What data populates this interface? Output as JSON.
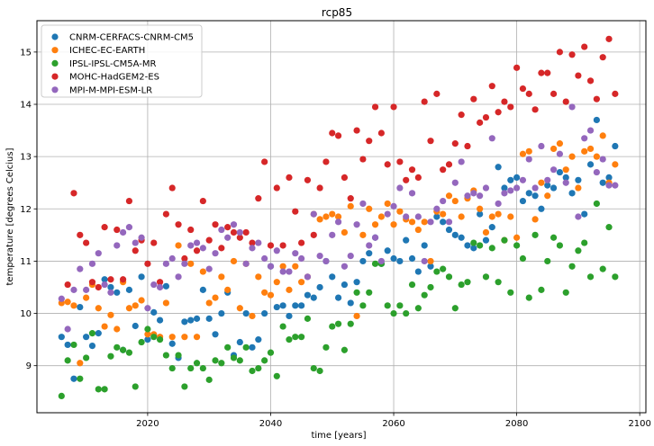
{
  "chart_data": {
    "type": "scatter",
    "title": "rcp85",
    "xlabel": "time [years]",
    "ylabel": "temperature [degrees Celcius]",
    "xlim": [
      2002,
      2101
    ],
    "ylim": [
      8.1,
      15.6
    ],
    "xticks": [
      2020,
      2040,
      2060,
      2080,
      2100
    ],
    "yticks": [
      9,
      10,
      11,
      12,
      13,
      14,
      15
    ],
    "grid": true,
    "legend_loc": "upper left",
    "series": [
      {
        "name": "CNRM-CERFACS-CNRM-CM5",
        "color": "#1f77b4",
        "x": [
          2006,
          2007,
          2008,
          2009,
          2010,
          2011,
          2012,
          2013,
          2014,
          2015,
          2016,
          2017,
          2018,
          2019,
          2020,
          2021,
          2022,
          2023,
          2024,
          2025,
          2026,
          2027,
          2028,
          2029,
          2030,
          2031,
          2032,
          2033,
          2034,
          2035,
          2036,
          2037,
          2038,
          2039,
          2040,
          2041,
          2042,
          2043,
          2044,
          2045,
          2046,
          2047,
          2048,
          2049,
          2050,
          2051,
          2052,
          2053,
          2054,
          2055,
          2056,
          2057,
          2058,
          2059,
          2060,
          2061,
          2062,
          2063,
          2064,
          2065,
          2066,
          2067,
          2068,
          2069,
          2070,
          2071,
          2072,
          2073,
          2074,
          2075,
          2076,
          2077,
          2078,
          2079,
          2080,
          2081,
          2082,
          2083,
          2084,
          2085,
          2086,
          2087,
          2088,
          2089,
          2090,
          2091,
          2092,
          2093,
          2094,
          2095,
          2096
        ],
        "y": [
          9.55,
          9.4,
          8.75,
          10.12,
          9.55,
          9.38,
          9.62,
          10.65,
          10.5,
          10.4,
          9.3,
          10.45,
          9.76,
          10.7,
          9.5,
          10.02,
          9.87,
          10.52,
          9.42,
          9.15,
          9.84,
          9.87,
          9.9,
          10.45,
          9.9,
          9.6,
          10.0,
          10.4,
          9.2,
          9.45,
          10.0,
          9.35,
          9.5,
          10.0,
          10.9,
          10.12,
          10.15,
          9.95,
          10.15,
          10.15,
          10.35,
          10.3,
          10.5,
          11.0,
          10.7,
          10.3,
          10.55,
          10.2,
          10.6,
          11.0,
          11.15,
          11.45,
          10.95,
          11.2,
          11.05,
          11.0,
          11.4,
          11.05,
          10.8,
          11.3,
          10.9,
          11.85,
          11.75,
          11.6,
          11.5,
          11.45,
          11.3,
          11.25,
          11.9,
          11.4,
          11.65,
          12.8,
          12.4,
          12.55,
          12.6,
          12.15,
          12.3,
          12.25,
          12.0,
          12.45,
          12.4,
          12.7,
          12.6,
          12.3,
          12.55,
          11.9,
          12.85,
          13.7,
          12.5,
          12.6,
          13.2
        ]
      },
      {
        "name": "ICHEC-EC-EARTH",
        "color": "#ff7f0e",
        "x": [
          2006,
          2007,
          2008,
          2009,
          2010,
          2011,
          2012,
          2013,
          2014,
          2015,
          2016,
          2017,
          2018,
          2019,
          2020,
          2021,
          2022,
          2023,
          2024,
          2025,
          2026,
          2027,
          2028,
          2029,
          2030,
          2031,
          2032,
          2033,
          2034,
          2035,
          2036,
          2037,
          2038,
          2039,
          2040,
          2041,
          2042,
          2043,
          2044,
          2045,
          2046,
          2047,
          2048,
          2049,
          2050,
          2051,
          2052,
          2053,
          2054,
          2055,
          2056,
          2057,
          2058,
          2059,
          2060,
          2061,
          2062,
          2063,
          2064,
          2065,
          2066,
          2067,
          2068,
          2069,
          2070,
          2071,
          2072,
          2073,
          2074,
          2075,
          2076,
          2077,
          2078,
          2079,
          2080,
          2081,
          2082,
          2083,
          2084,
          2085,
          2086,
          2087,
          2088,
          2089,
          2090,
          2091,
          2092,
          2093,
          2094,
          2095,
          2096
        ],
        "y": [
          10.2,
          10.22,
          10.15,
          9.05,
          10.3,
          10.55,
          10.1,
          9.75,
          9.97,
          9.7,
          10.6,
          10.1,
          10.15,
          10.25,
          9.6,
          9.6,
          9.55,
          10.2,
          9.55,
          11.3,
          9.55,
          10.95,
          9.55,
          10.8,
          10.2,
          10.3,
          10.7,
          10.45,
          11.0,
          10.1,
          10.95,
          9.95,
          10.7,
          10.4,
          10.35,
          10.6,
          10.9,
          10.45,
          10.9,
          10.6,
          10.7,
          11.9,
          11.8,
          11.85,
          11.9,
          11.85,
          11.55,
          12.05,
          9.95,
          11.5,
          12.0,
          11.7,
          11.85,
          12.1,
          11.7,
          11.95,
          11.8,
          11.75,
          11.6,
          11.75,
          11.0,
          11.95,
          11.9,
          12.25,
          12.15,
          11.85,
          12.2,
          12.35,
          12.0,
          11.55,
          11.85,
          11.9,
          11.4,
          11.85,
          11.45,
          13.05,
          13.1,
          11.8,
          12.5,
          12.25,
          13.15,
          13.25,
          12.75,
          13.0,
          12.4,
          13.1,
          13.15,
          13.0,
          13.4,
          12.5,
          12.85
        ]
      },
      {
        "name": "IPSL-IPSL-CM5A-MR",
        "color": "#2ca02c",
        "x": [
          2006,
          2007,
          2008,
          2009,
          2010,
          2011,
          2012,
          2013,
          2014,
          2015,
          2016,
          2017,
          2018,
          2019,
          2020,
          2021,
          2022,
          2023,
          2024,
          2025,
          2026,
          2027,
          2028,
          2029,
          2030,
          2031,
          2032,
          2033,
          2034,
          2035,
          2036,
          2037,
          2038,
          2039,
          2040,
          2041,
          2042,
          2043,
          2044,
          2045,
          2046,
          2047,
          2048,
          2049,
          2050,
          2051,
          2052,
          2053,
          2054,
          2055,
          2056,
          2057,
          2058,
          2059,
          2060,
          2061,
          2062,
          2063,
          2064,
          2065,
          2066,
          2067,
          2068,
          2069,
          2070,
          2071,
          2072,
          2073,
          2074,
          2075,
          2076,
          2077,
          2078,
          2079,
          2080,
          2081,
          2082,
          2083,
          2084,
          2085,
          2086,
          2087,
          2088,
          2089,
          2090,
          2091,
          2092,
          2093,
          2094,
          2095,
          2096
        ],
        "y": [
          8.42,
          9.1,
          9.4,
          8.75,
          9.15,
          9.62,
          8.55,
          8.55,
          9.18,
          9.35,
          9.3,
          9.25,
          8.6,
          9.45,
          9.7,
          9.55,
          9.5,
          9.2,
          8.95,
          9.2,
          8.6,
          8.95,
          9.05,
          8.95,
          8.73,
          9.1,
          9.05,
          9.35,
          9.15,
          9.1,
          9.35,
          8.9,
          8.95,
          9.1,
          9.25,
          8.8,
          9.75,
          9.5,
          9.55,
          9.55,
          9.9,
          8.95,
          8.9,
          9.35,
          9.75,
          9.8,
          9.3,
          9.8,
          10.4,
          10.15,
          10.4,
          10.95,
          10.95,
          10.15,
          10.0,
          10.15,
          10.0,
          10.55,
          10.1,
          10.35,
          10.5,
          10.8,
          10.85,
          10.7,
          10.1,
          10.55,
          10.6,
          11.35,
          11.3,
          10.7,
          11.25,
          10.6,
          11.4,
          10.4,
          11.3,
          11.05,
          10.3,
          11.5,
          10.45,
          11.0,
          11.45,
          11.3,
          10.4,
          10.9,
          11.2,
          11.35,
          10.7,
          12.1,
          10.85,
          11.65,
          10.7
        ]
      },
      {
        "name": "MOHC-HadGEM2-ES",
        "color": "#d62728",
        "x": [
          2007,
          2008,
          2009,
          2010,
          2011,
          2012,
          2013,
          2014,
          2015,
          2016,
          2017,
          2018,
          2019,
          2020,
          2021,
          2022,
          2023,
          2024,
          2025,
          2026,
          2027,
          2028,
          2029,
          2030,
          2031,
          2032,
          2033,
          2034,
          2035,
          2036,
          2037,
          2038,
          2039,
          2040,
          2041,
          2042,
          2043,
          2044,
          2045,
          2046,
          2047,
          2048,
          2049,
          2050,
          2051,
          2052,
          2053,
          2054,
          2055,
          2056,
          2057,
          2058,
          2059,
          2060,
          2061,
          2062,
          2063,
          2064,
          2065,
          2066,
          2067,
          2068,
          2069,
          2070,
          2071,
          2072,
          2073,
          2074,
          2075,
          2076,
          2077,
          2078,
          2079,
          2080,
          2081,
          2082,
          2083,
          2084,
          2085,
          2086,
          2087,
          2088,
          2089,
          2090,
          2091,
          2092,
          2093,
          2094,
          2095,
          2096
        ],
        "y": [
          10.55,
          12.3,
          11.5,
          11.35,
          10.6,
          10.5,
          11.65,
          10.65,
          11.6,
          10.65,
          12.15,
          11.2,
          11.4,
          10.95,
          11.35,
          10.6,
          11.9,
          12.4,
          11.7,
          11.05,
          11.6,
          11.2,
          12.15,
          11.4,
          11.7,
          11.25,
          11.65,
          11.55,
          11.45,
          11.55,
          11.35,
          12.2,
          12.9,
          11.3,
          12.4,
          11.3,
          12.6,
          11.95,
          11.35,
          12.55,
          11.5,
          12.4,
          12.9,
          13.45,
          13.4,
          12.6,
          12.2,
          13.5,
          12.95,
          13.3,
          13.95,
          13.45,
          12.85,
          13.95,
          12.9,
          12.55,
          12.75,
          12.6,
          14.05,
          13.3,
          14.2,
          12.75,
          12.85,
          13.25,
          13.8,
          13.2,
          14.1,
          13.65,
          13.75,
          14.35,
          13.85,
          14.05,
          13.95,
          14.7,
          14.3,
          14.2,
          13.9,
          14.6,
          14.6,
          14.2,
          15.0,
          14.05,
          14.95,
          14.55,
          15.1,
          14.45,
          14.1,
          14.9,
          15.25,
          14.2
        ]
      },
      {
        "name": "MPI-M-MPI-ESM-LR",
        "color": "#9467bd",
        "x": [
          2006,
          2007,
          2008,
          2009,
          2010,
          2011,
          2012,
          2013,
          2014,
          2015,
          2016,
          2017,
          2018,
          2019,
          2020,
          2021,
          2022,
          2023,
          2024,
          2025,
          2026,
          2027,
          2028,
          2029,
          2030,
          2031,
          2032,
          2033,
          2034,
          2035,
          2036,
          2037,
          2038,
          2039,
          2040,
          2041,
          2042,
          2043,
          2044,
          2045,
          2046,
          2047,
          2048,
          2049,
          2050,
          2051,
          2052,
          2053,
          2054,
          2055,
          2056,
          2057,
          2058,
          2059,
          2060,
          2061,
          2062,
          2063,
          2064,
          2065,
          2066,
          2067,
          2068,
          2069,
          2070,
          2071,
          2072,
          2073,
          2074,
          2075,
          2076,
          2077,
          2078,
          2079,
          2080,
          2081,
          2082,
          2083,
          2084,
          2085,
          2086,
          2087,
          2088,
          2089,
          2090,
          2091,
          2092,
          2093,
          2094,
          2095,
          2096
        ],
        "y": [
          10.28,
          9.7,
          10.45,
          10.85,
          10.45,
          10.95,
          11.15,
          10.55,
          10.4,
          11.3,
          11.55,
          11.65,
          11.35,
          11.45,
          10.1,
          10.55,
          10.5,
          10.95,
          11.05,
          10.7,
          10.95,
          11.3,
          11.35,
          11.25,
          10.85,
          11.15,
          11.6,
          11.45,
          11.7,
          11.55,
          10.95,
          11.25,
          11.35,
          11.05,
          10.9,
          11.2,
          10.8,
          10.8,
          11.15,
          11.05,
          10.7,
          11.9,
          11.1,
          11.0,
          11.5,
          11.75,
          10.9,
          11.1,
          11.7,
          12.1,
          11.3,
          11.45,
          11.0,
          11.9,
          12.05,
          12.4,
          11.85,
          12.3,
          11.85,
          11.0,
          11.75,
          12.0,
          12.15,
          11.75,
          12.5,
          12.9,
          12.25,
          12.3,
          12.25,
          12.4,
          13.35,
          12.1,
          12.3,
          12.35,
          12.4,
          12.55,
          12.95,
          12.4,
          13.2,
          12.55,
          12.75,
          13.05,
          12.5,
          13.95,
          11.85,
          13.35,
          13.5,
          12.7,
          12.95,
          12.45,
          12.45
        ]
      }
    ]
  }
}
